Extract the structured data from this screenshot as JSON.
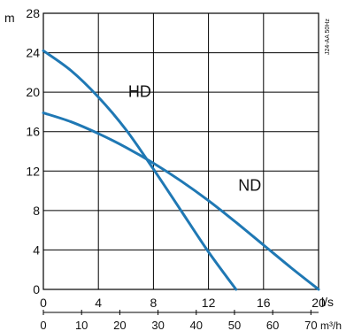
{
  "colors": {
    "curve": "#1f78b4",
    "grid": "#000000",
    "text": "#111111"
  },
  "chart_data": {
    "type": "line",
    "title": "",
    "ylabel": "m",
    "xlabel": "l/s",
    "x2label": "m³/h",
    "ylim": [
      0,
      28
    ],
    "xlim": [
      0,
      20
    ],
    "x2lim": [
      0,
      72
    ],
    "grid": true,
    "y_ticks": [
      "0",
      "4",
      "8",
      "12",
      "16",
      "20",
      "24",
      "28"
    ],
    "x_ticks": [
      "0",
      "4",
      "8",
      "12",
      "16",
      "20"
    ],
    "x2_ticks": [
      "0",
      "10",
      "20",
      "30",
      "40",
      "50",
      "60",
      "70"
    ],
    "annotation": "J24-AA 50Hz",
    "series": [
      {
        "name": "HD",
        "x": [
          0,
          2,
          4,
          6,
          8,
          10,
          12,
          14
        ],
        "y": [
          24.2,
          22.2,
          19.5,
          16.2,
          12.2,
          8.0,
          3.8,
          0
        ]
      },
      {
        "name": "ND",
        "x": [
          0,
          2,
          4,
          6,
          8,
          10,
          12,
          14,
          16,
          18,
          20
        ],
        "y": [
          17.9,
          17.0,
          15.8,
          14.4,
          12.8,
          11.0,
          9.0,
          6.8,
          4.5,
          2.2,
          0
        ]
      }
    ]
  }
}
